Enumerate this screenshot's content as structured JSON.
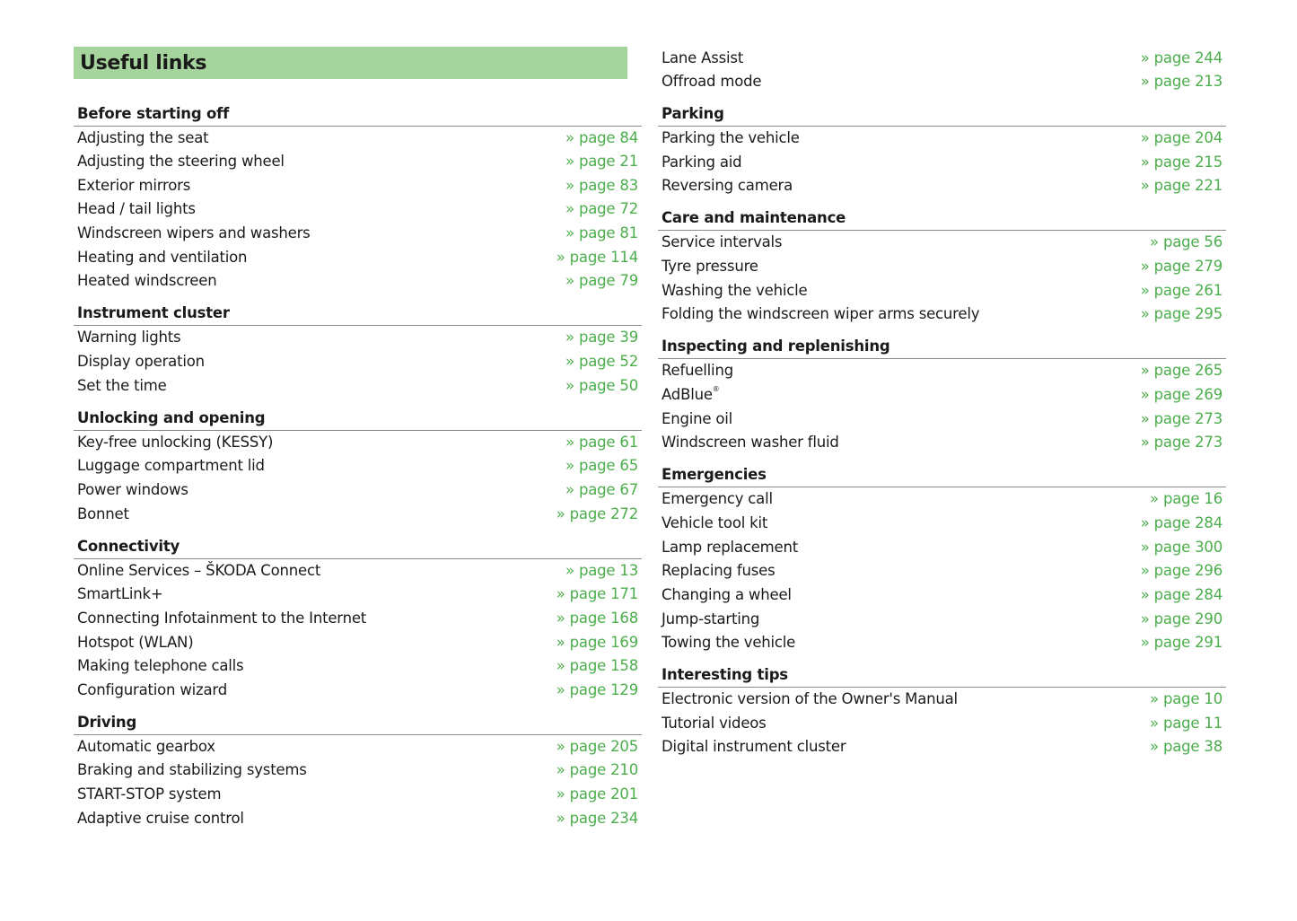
{
  "title": "Useful links",
  "link_color": "#4cae4c",
  "header_color": "#a5d59c",
  "columns": [
    [
      {
        "heading": "Before starting off",
        "items": [
          {
            "label": "Adjusting the seat",
            "page": "» page 84"
          },
          {
            "label": "Adjusting the steering wheel",
            "page": "» page 21"
          },
          {
            "label": "Exterior mirrors",
            "page": "» page 83"
          },
          {
            "label": "Head / tail lights",
            "page": "» page 72"
          },
          {
            "label": "Windscreen wipers and washers",
            "page": "» page 81"
          },
          {
            "label": "Heating and ventilation",
            "page": "» page 114"
          },
          {
            "label": "Heated windscreen",
            "page": "» page 79"
          }
        ]
      },
      {
        "heading": "Instrument cluster",
        "items": [
          {
            "label": "Warning lights",
            "page": "» page 39"
          },
          {
            "label": "Display operation",
            "page": "» page 52"
          },
          {
            "label": "Set the time",
            "page": "» page 50"
          }
        ]
      },
      {
        "heading": "Unlocking and opening",
        "items": [
          {
            "label": "Key-free unlocking (KESSY)",
            "page": "» page 61"
          },
          {
            "label": "Luggage compartment lid",
            "page": "» page 65"
          },
          {
            "label": "Power windows",
            "page": "» page 67"
          },
          {
            "label": "Bonnet",
            "page": "» page 272"
          }
        ]
      },
      {
        "heading": "Connectivity",
        "items": [
          {
            "label": "Online Services – ŠKODA Connect",
            "page": "» page 13"
          },
          {
            "label": "SmartLink+",
            "page": "» page 171"
          },
          {
            "label": "Connecting Infotainment to the Internet",
            "page": "» page 168"
          },
          {
            "label": "Hotspot (WLAN)",
            "page": "» page 169"
          },
          {
            "label": "Making telephone calls",
            "page": "» page 158"
          },
          {
            "label": "Configuration wizard",
            "page": "» page 129"
          }
        ]
      },
      {
        "heading": "Driving",
        "items": [
          {
            "label": "Automatic gearbox",
            "page": "» page 205"
          },
          {
            "label": "Braking and stabilizing systems",
            "page": "» page 210"
          },
          {
            "label": "START-STOP system",
            "page": "» page 201"
          },
          {
            "label": "Adaptive cruise control",
            "page": "» page 234"
          }
        ]
      }
    ],
    [
      {
        "heading": "",
        "items": [
          {
            "label": "Lane Assist",
            "page": "» page 244"
          },
          {
            "label": "Offroad mode",
            "page": "» page 213"
          }
        ]
      },
      {
        "heading": "Parking",
        "items": [
          {
            "label": "Parking the vehicle",
            "page": "» page 204"
          },
          {
            "label": "Parking aid",
            "page": "» page 215"
          },
          {
            "label": "Reversing camera",
            "page": "» page 221"
          }
        ]
      },
      {
        "heading": "Care and maintenance",
        "items": [
          {
            "label": "Service intervals",
            "page": "» page 56"
          },
          {
            "label": "Tyre pressure",
            "page": "» page 279"
          },
          {
            "label": "Washing the vehicle",
            "page": "» page 261"
          },
          {
            "label": "Folding the windscreen wiper arms securely",
            "page": "» page 295"
          }
        ]
      },
      {
        "heading": "Inspecting and replenishing",
        "items": [
          {
            "label": "Refuelling",
            "page": "» page 265"
          },
          {
            "label": "AdBlue",
            "sup": "®",
            "page": "» page 269"
          },
          {
            "label": "Engine oil",
            "page": "» page 273"
          },
          {
            "label": "Windscreen washer fluid",
            "page": "» page 273"
          }
        ]
      },
      {
        "heading": "Emergencies",
        "items": [
          {
            "label": "Emergency call",
            "page": "» page 16"
          },
          {
            "label": "Vehicle tool kit",
            "page": "» page 284"
          },
          {
            "label": "Lamp replacement",
            "page": "» page 300"
          },
          {
            "label": "Replacing fuses",
            "page": "» page 296"
          },
          {
            "label": "Changing a wheel",
            "page": "» page 284"
          },
          {
            "label": "Jump-starting",
            "page": "» page 290"
          },
          {
            "label": "Towing the vehicle",
            "page": "» page 291"
          }
        ]
      },
      {
        "heading": "Interesting tips",
        "items": [
          {
            "label": "Electronic version of the Owner's Manual",
            "page": "» page 10"
          },
          {
            "label": "Tutorial videos",
            "page": "» page 11"
          },
          {
            "label": "Digital instrument cluster",
            "page": "» page 38"
          }
        ]
      }
    ]
  ]
}
